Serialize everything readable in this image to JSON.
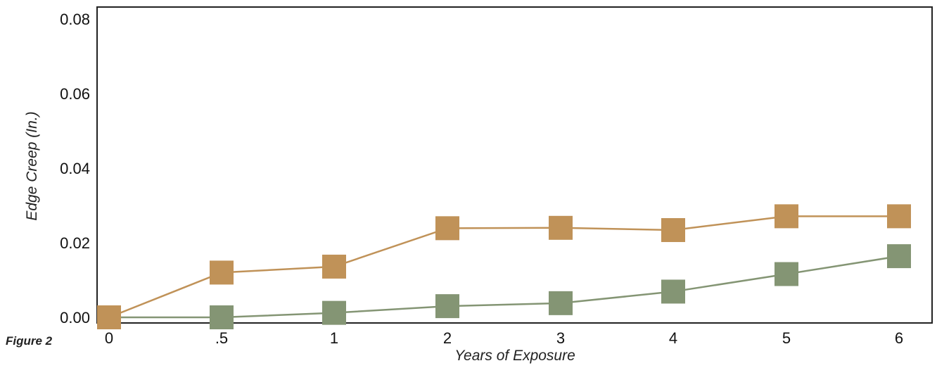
{
  "caption": "Figure 2",
  "chart_data": {
    "type": "line",
    "xlabel": "Years of Exposure",
    "ylabel": "Edge Creep (In.)",
    "categories": [
      "0",
      ".5",
      "1",
      "2",
      "3",
      "4",
      "5",
      "6"
    ],
    "yticks": [
      "0.00",
      "0.02",
      "0.04",
      "0.06",
      "0.08"
    ],
    "ylim": [
      0,
      0.08
    ],
    "grid": false,
    "legend": "none",
    "series": [
      {
        "color": "#c09258",
        "marker": "square",
        "values": [
          0.0,
          0.012,
          0.0136,
          0.0239,
          0.024,
          0.0234,
          0.0271,
          0.0271
        ]
      },
      {
        "color": "#849574",
        "marker": "square",
        "values": [
          0.0,
          0.0,
          0.0012,
          0.003,
          0.0038,
          0.0069,
          0.0116,
          0.0164
        ]
      }
    ]
  }
}
